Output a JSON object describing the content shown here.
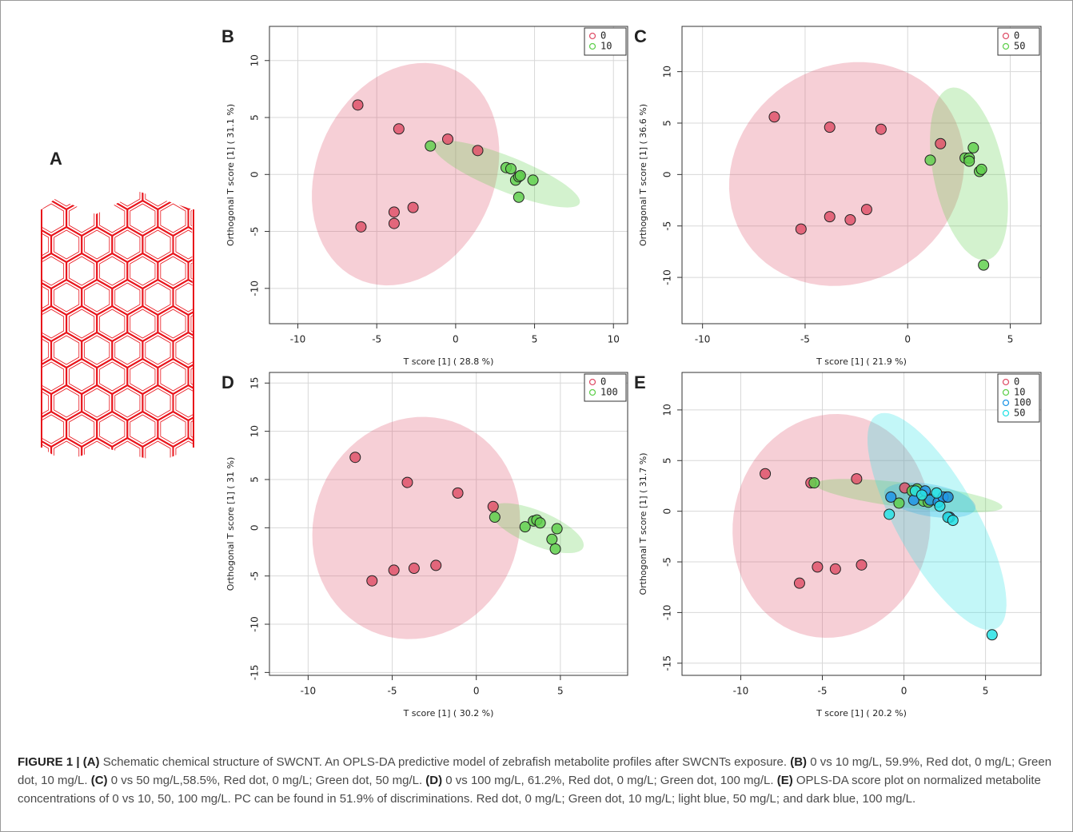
{
  "panel_a_label": "A",
  "chart_data": [
    {
      "type": "scatter",
      "label": "B",
      "x_label": "T score [1] ( 28.8 %)",
      "y_label": "Orthogonal T score [1] ( 31.1 %)",
      "xlim": [
        -11.8,
        10.9
      ],
      "ylim": [
        -13.1,
        13.0
      ],
      "xticks": [
        -10,
        -5,
        0,
        5,
        10
      ],
      "yticks": [
        -10,
        -5,
        0,
        5,
        10
      ],
      "grid": true,
      "legend": "top-right",
      "series": [
        {
          "name": "0",
          "color": "#df536b",
          "x": [
            -6.2,
            -3.6,
            -0.5,
            1.4,
            -3.9,
            -3.9,
            -2.7,
            -6.0
          ],
          "y": [
            6.1,
            4.0,
            3.1,
            2.1,
            -3.3,
            -4.3,
            -2.9,
            -4.6
          ]
        },
        {
          "name": "10",
          "color": "#61d04f",
          "x": [
            -1.6,
            3.2,
            3.5,
            3.8,
            4.0,
            4.1,
            4.9,
            4.0
          ],
          "y": [
            2.5,
            0.6,
            0.5,
            -0.5,
            -0.2,
            -0.1,
            -0.5,
            -2.0
          ]
        }
      ]
    },
    {
      "type": "scatter",
      "label": "C",
      "x_label": "T score [1] ( 21.9 %)",
      "y_label": "Orthogonal T score [1] ( 36.6 %)",
      "xlim": [
        -11.0,
        6.5
      ],
      "ylim": [
        -14.5,
        14.4
      ],
      "xticks": [
        -10,
        -5,
        0,
        5
      ],
      "yticks": [
        -10,
        -5,
        0,
        5,
        10
      ],
      "grid": true,
      "legend": "top-right",
      "series": [
        {
          "name": "0",
          "color": "#df536b",
          "x": [
            -6.5,
            -3.8,
            -1.3,
            1.6,
            -5.2,
            -3.8,
            -2.8,
            -2.0
          ],
          "y": [
            5.6,
            4.6,
            4.4,
            3.0,
            -5.3,
            -4.1,
            -4.4,
            -3.4
          ]
        },
        {
          "name": "50",
          "color": "#61d04f",
          "x": [
            1.1,
            2.8,
            3.0,
            3.0,
            3.2,
            3.5,
            3.6,
            3.7
          ],
          "y": [
            1.4,
            1.6,
            1.6,
            1.3,
            2.6,
            0.3,
            0.5,
            -8.8
          ]
        }
      ]
    },
    {
      "type": "scatter",
      "label": "D",
      "x_label": "T score [1] ( 30.2 %)",
      "y_label": "Orthogonal T score [1] ( 31 %)",
      "xlim": [
        -12.3,
        9.0
      ],
      "ylim": [
        -15.3,
        16.1
      ],
      "xticks": [
        -10,
        -5,
        0,
        5
      ],
      "yticks": [
        -15,
        -10,
        -5,
        0,
        5,
        10,
        15
      ],
      "grid": true,
      "legend": "top-right",
      "series": [
        {
          "name": "0",
          "color": "#df536b",
          "x": [
            -7.2,
            -4.1,
            -1.1,
            1.0,
            -6.2,
            -4.9,
            -3.7,
            -2.4
          ],
          "y": [
            7.3,
            4.7,
            3.6,
            2.2,
            -5.5,
            -4.4,
            -4.2,
            -3.9
          ]
        },
        {
          "name": "100",
          "color": "#61d04f",
          "x": [
            1.1,
            2.9,
            3.4,
            3.6,
            3.8,
            4.8,
            4.5,
            4.7
          ],
          "y": [
            1.1,
            0.1,
            0.7,
            0.8,
            0.5,
            -0.1,
            -1.2,
            -2.2
          ]
        }
      ]
    },
    {
      "type": "scatter",
      "label": "E",
      "x_label": "T score [1] ( 20.2 %)",
      "y_label": "Orthogonal T score [1] ( 31.7 %)",
      "xlim": [
        -13.6,
        8.4
      ],
      "ylim": [
        -16.2,
        13.7
      ],
      "xticks": [
        -10,
        -5,
        0,
        5
      ],
      "yticks": [
        -15,
        -10,
        -5,
        0,
        5,
        10
      ],
      "grid": true,
      "legend": "top-right",
      "series": [
        {
          "name": "0",
          "color": "#df536b",
          "x": [
            -8.5,
            -5.7,
            -2.9,
            0.05,
            -6.4,
            -5.3,
            -4.2,
            -2.6
          ],
          "y": [
            3.7,
            2.8,
            3.2,
            2.3,
            -7.1,
            -5.5,
            -5.7,
            -5.3
          ]
        },
        {
          "name": "10",
          "color": "#61d04f",
          "x": [
            -5.5,
            -0.3,
            0.8,
            1.2,
            1.5,
            1.6,
            0.5,
            2.6
          ],
          "y": [
            2.8,
            0.8,
            2.2,
            1.0,
            0.9,
            1.2,
            2.0,
            1.4
          ]
        },
        {
          "name": "100",
          "color": "#2297e6",
          "x": [
            -0.8,
            0.6,
            1.3,
            1.6,
            2.1,
            2.4,
            2.7,
            2.8
          ],
          "y": [
            1.4,
            1.1,
            2.0,
            1.1,
            0.9,
            1.4,
            1.4,
            -0.6
          ]
        },
        {
          "name": "50",
          "color": "#28e2e5",
          "x": [
            -0.9,
            0.7,
            1.1,
            2.0,
            2.2,
            2.7,
            3.0,
            5.4
          ],
          "y": [
            -0.3,
            2.0,
            1.6,
            1.8,
            0.5,
            -0.6,
            -0.9,
            -12.2
          ]
        }
      ]
    }
  ],
  "caption": [
    {
      "text": "FIGURE 1 | (A)",
      "bold": true
    },
    {
      "text": " Schematic chemical structure of SWCNT. An OPLS-DA predictive model of zebrafish metabolite profiles after SWCNTs exposure. ",
      "bold": false
    },
    {
      "text": "(B)",
      "bold": true
    },
    {
      "text": " 0 vs 10 mg/L, 59.9%, Red dot, 0 mg/L; Green dot, 10 mg/L. ",
      "bold": false
    },
    {
      "text": "(C)",
      "bold": true
    },
    {
      "text": " 0 vs 50 mg/L,58.5%, Red dot, 0 mg/L; Green dot, 50 mg/L. ",
      "bold": false
    },
    {
      "text": "(D)",
      "bold": true
    },
    {
      "text": " 0 vs 100 mg/L, 61.2%, Red dot, 0 mg/L; Green dot, 100 mg/L. ",
      "bold": false
    },
    {
      "text": "(E)",
      "bold": true
    },
    {
      "text": " OPLS-DA score plot on normalized metabolite concentrations of 0 vs 10, 50, 100 mg/L. PC can be found in 51.9% of discriminations. Red dot, 0 mg/L; Green dot, 10 mg/L; light blue, 50 mg/L; and dark blue, 100 mg/L.",
      "bold": false
    }
  ]
}
